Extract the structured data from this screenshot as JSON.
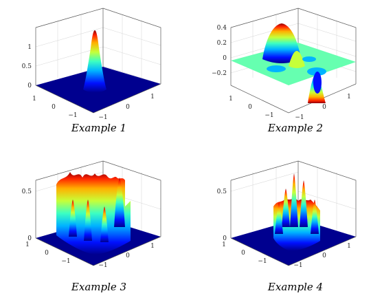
{
  "chart_data": [
    {
      "type": "surface",
      "caption": "Example 1",
      "z_ticks": [
        "0",
        "0.5",
        "1"
      ],
      "x_ticks": [
        "1",
        "0",
        "−1"
      ],
      "y_ticks": [
        "−1",
        "0",
        "1"
      ],
      "xlim": [
        -1.5,
        1.5
      ],
      "ylim": [
        -1.5,
        1.5
      ],
      "zlim": [
        0,
        1.5
      ],
      "grid": true,
      "shape": "single central gaussian peak",
      "peak": {
        "x": 0.0,
        "y": 0.0,
        "z": 1.45
      }
    },
    {
      "type": "surface",
      "caption": "Example 2",
      "z_ticks": [
        "−0.2",
        "0",
        "0.2",
        "0.4"
      ],
      "x_ticks": [
        "1",
        "0",
        "−1"
      ],
      "y_ticks": [
        "−1",
        "0",
        "1"
      ],
      "xlim": [
        -1.5,
        1.5
      ],
      "ylim": [
        -1.5,
        1.5
      ],
      "zlim": [
        -0.35,
        0.45
      ],
      "grid": true,
      "shape": "sum of positive and negative gaussian bumps",
      "bumps": [
        {
          "x": 0.0,
          "y": -0.8,
          "z": 0.41
        },
        {
          "x": -0.5,
          "y": 0.2,
          "z": 0.18
        },
        {
          "x": 0.4,
          "y": 0.4,
          "z": 0.12
        },
        {
          "x": 0.8,
          "y": 0.7,
          "z": -0.32
        },
        {
          "x": 0.3,
          "y": -0.4,
          "z": -0.1
        }
      ]
    },
    {
      "type": "surface",
      "caption": "Example 3",
      "z_ticks": [
        "0",
        "0.5"
      ],
      "x_ticks": [
        "1",
        "0",
        "−1"
      ],
      "y_ticks": [
        "−1",
        "0",
        "1"
      ],
      "xlim": [
        -1.5,
        1.5
      ],
      "ylim": [
        -1.5,
        1.5
      ],
      "zlim": [
        0,
        0.8
      ],
      "grid": true,
      "shape": "oscillatory plateau on central square",
      "peak": {
        "z": 0.72
      }
    },
    {
      "type": "surface",
      "caption": "Example 4",
      "z_ticks": [
        "0",
        "0.5"
      ],
      "x_ticks": [
        "1",
        "0",
        "−1"
      ],
      "y_ticks": [
        "−1",
        "0",
        "1"
      ],
      "xlim": [
        -1.5,
        1.5
      ],
      "ylim": [
        -1.5,
        1.5
      ],
      "zlim": [
        0,
        0.8
      ],
      "grid": true,
      "shape": "oscillatory spikes on central disc",
      "peak": {
        "z": 0.72
      }
    }
  ]
}
